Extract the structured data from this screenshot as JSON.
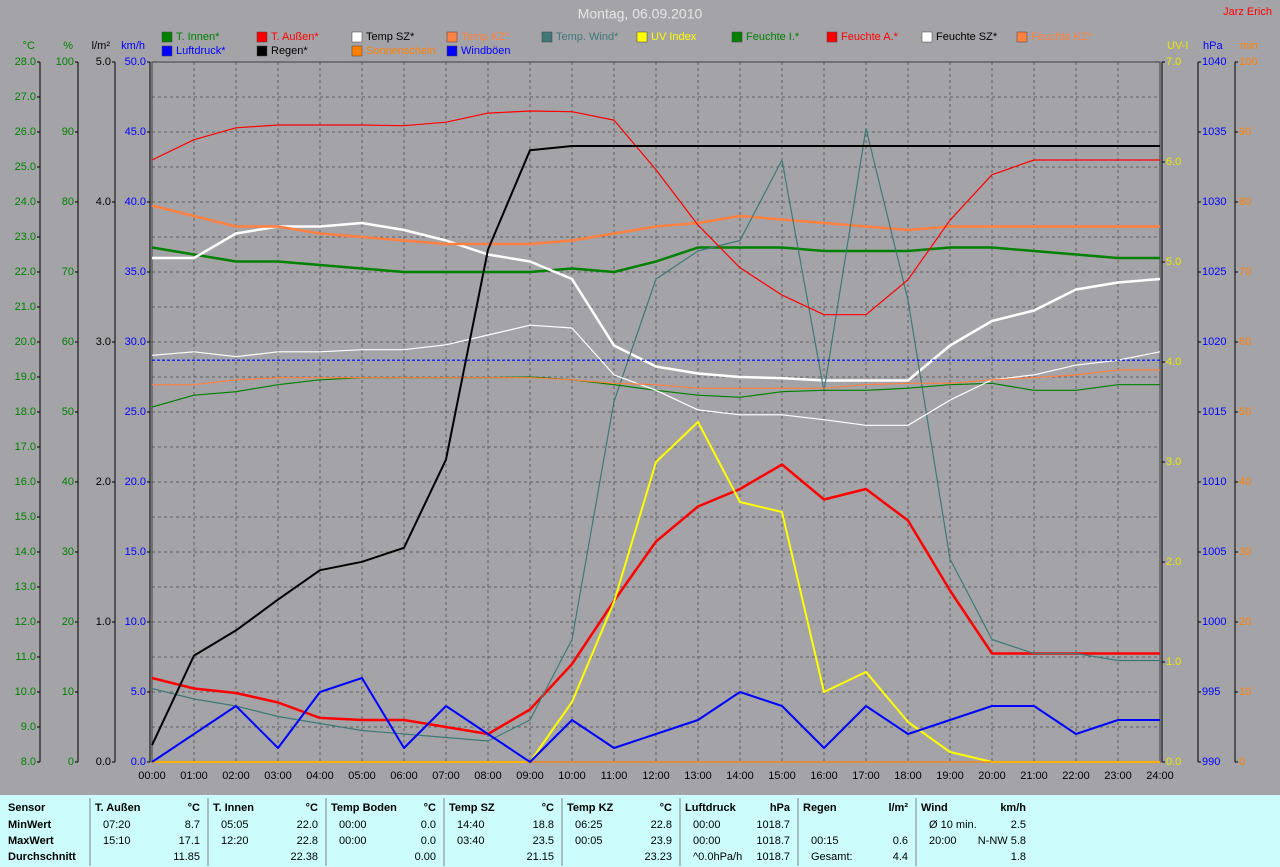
{
  "chart_data": {
    "type": "line",
    "title": "Montag, 06.09.2010",
    "annotation": "Jarz Erich",
    "grid": true,
    "x": [
      0,
      1,
      2,
      3,
      4,
      5,
      6,
      7,
      8,
      9,
      10,
      11,
      12,
      13,
      14,
      15,
      16,
      17,
      18,
      19,
      20,
      21,
      22,
      23,
      24
    ],
    "xlim": [
      0,
      24
    ],
    "xticks": [
      {
        "value": 0,
        "label": "00:00"
      },
      {
        "value": 1,
        "label": "01:00"
      },
      {
        "value": 2,
        "label": "02:00"
      },
      {
        "value": 3,
        "label": "03:00"
      },
      {
        "value": 4,
        "label": "04:00"
      },
      {
        "value": 5,
        "label": "05:00"
      },
      {
        "value": 6,
        "label": "06:00"
      },
      {
        "value": 7,
        "label": "07:00"
      },
      {
        "value": 8,
        "label": "08:00"
      },
      {
        "value": 9,
        "label": "09:00"
      },
      {
        "value": 10,
        "label": "10:00"
      },
      {
        "value": 11,
        "label": "11:00"
      },
      {
        "value": 12,
        "label": "12:00"
      },
      {
        "value": 13,
        "label": "13:00"
      },
      {
        "value": 14,
        "label": "14:00"
      },
      {
        "value": 15,
        "label": "15:00"
      },
      {
        "value": 16,
        "label": "16:00"
      },
      {
        "value": 17,
        "label": "17:00"
      },
      {
        "value": 18,
        "label": "18:00"
      },
      {
        "value": 19,
        "label": "19:00"
      },
      {
        "value": 20,
        "label": "20:00"
      },
      {
        "value": 21,
        "label": "21:00"
      },
      {
        "value": 22,
        "label": "22:00"
      },
      {
        "value": 23,
        "label": "23:00"
      },
      {
        "value": 24,
        "label": "24:00"
      }
    ],
    "axes": [
      {
        "label": "°C",
        "color": "#008000",
        "ylim": [
          8,
          28
        ],
        "yticks": [
          {
            "value": 8,
            "label": "8.0"
          },
          {
            "value": 9,
            "label": "9.0"
          },
          {
            "value": 10,
            "label": "10.0"
          },
          {
            "value": 11,
            "label": "11.0"
          },
          {
            "value": 12,
            "label": "12.0"
          },
          {
            "value": 13,
            "label": "13.0"
          },
          {
            "value": 14,
            "label": "14.0"
          },
          {
            "value": 15,
            "label": "15.0"
          },
          {
            "value": 16,
            "label": "16.0"
          },
          {
            "value": 17,
            "label": "17.0"
          },
          {
            "value": 18,
            "label": "18.0"
          },
          {
            "value": 19,
            "label": "19.0"
          },
          {
            "value": 20,
            "label": "20.0"
          },
          {
            "value": 21,
            "label": "21.0"
          },
          {
            "value": 22,
            "label": "22.0"
          },
          {
            "value": 23,
            "label": "23.0"
          },
          {
            "value": 24,
            "label": "24.0"
          },
          {
            "value": 25,
            "label": "25.0"
          },
          {
            "value": 26,
            "label": "26.0"
          },
          {
            "value": 27,
            "label": "27.0"
          },
          {
            "value": 28,
            "label": "28.0"
          }
        ]
      },
      {
        "label": "%",
        "color": "#008000",
        "ylim": [
          0,
          100
        ],
        "yticks": [
          0,
          10,
          20,
          30,
          40,
          50,
          60,
          70,
          80,
          90,
          100
        ]
      },
      {
        "label": "l/m²",
        "color": "#000000",
        "ylim": [
          0,
          5
        ],
        "yticks": [
          {
            "value": 0,
            "label": "0.0"
          },
          {
            "value": 1,
            "label": "1.0"
          },
          {
            "value": 2,
            "label": "2.0"
          },
          {
            "value": 3,
            "label": "3.0"
          },
          {
            "value": 4,
            "label": "4.0"
          },
          {
            "value": 5,
            "label": "5.0"
          }
        ]
      },
      {
        "label": "km/h",
        "color": "#0000ff",
        "ylim": [
          0,
          50
        ],
        "yticks": [
          {
            "value": 0,
            "label": "0.0"
          },
          {
            "value": 5,
            "label": "5.0"
          },
          {
            "value": 10,
            "label": "10.0"
          },
          {
            "value": 15,
            "label": "15.0"
          },
          {
            "value": 20,
            "label": "20.0"
          },
          {
            "value": 25,
            "label": "25.0"
          },
          {
            "value": 30,
            "label": "30.0"
          },
          {
            "value": 35,
            "label": "35.0"
          },
          {
            "value": 40,
            "label": "40.0"
          },
          {
            "value": 45,
            "label": "45.0"
          },
          {
            "value": 50,
            "label": "50.0"
          }
        ]
      },
      {
        "label": "UV-I",
        "color": "#e8e800",
        "ylim": [
          0,
          7
        ],
        "yticks": [
          {
            "value": 0,
            "label": "0.0"
          },
          {
            "value": 1,
            "label": "1.0"
          },
          {
            "value": 2,
            "label": "2.0"
          },
          {
            "value": 3,
            "label": "3.0"
          },
          {
            "value": 4,
            "label": "4.0"
          },
          {
            "value": 5,
            "label": "5.0"
          },
          {
            "value": 6,
            "label": "6.0"
          },
          {
            "value": 7,
            "label": "7.0"
          }
        ]
      },
      {
        "label": "hPa",
        "color": "#0000ff",
        "ylim": [
          990,
          1040
        ],
        "yticks": [
          990,
          995,
          1000,
          1005,
          1010,
          1015,
          1020,
          1025,
          1030,
          1035,
          1040
        ]
      },
      {
        "label": "min",
        "color": "#ff8000",
        "ylim": [
          0,
          100
        ],
        "yticks": [
          0,
          10,
          20,
          30,
          40,
          50,
          60,
          70,
          80,
          90,
          100
        ]
      }
    ],
    "series": [
      {
        "name": "T. Innen*",
        "color": "#008000",
        "axis": 0,
        "linewidth": 2.5,
        "values": [
          22.7,
          22.5,
          22.3,
          22.3,
          22.2,
          22.1,
          22.0,
          22.0,
          22.0,
          22.0,
          22.1,
          22.0,
          22.3,
          22.7,
          22.7,
          22.7,
          22.6,
          22.6,
          22.6,
          22.7,
          22.7,
          22.6,
          22.5,
          22.4,
          22.4
        ]
      },
      {
        "name": "T. Außen*",
        "color": "#ff0000",
        "axis": 0,
        "linewidth": 2.5,
        "values": [
          10.4,
          10.1,
          9.97,
          9.7,
          9.26,
          9.2,
          9.2,
          9.0,
          8.8,
          9.5,
          10.8,
          12.6,
          14.3,
          15.3,
          15.8,
          16.5,
          15.5,
          15.8,
          14.9,
          12.9,
          11.1,
          11.1,
          11.1,
          11.1,
          11.1
        ]
      },
      {
        "name": "Temp SZ*",
        "color": "#ffffff",
        "axis": 0,
        "linewidth": 2.5,
        "values": [
          22.4,
          22.4,
          23.1,
          23.3,
          23.3,
          23.4,
          23.2,
          22.9,
          22.5,
          22.3,
          21.8,
          19.9,
          19.3,
          19.1,
          19.0,
          18.97,
          18.9,
          18.9,
          18.9,
          19.9,
          20.6,
          20.9,
          21.5,
          21.7,
          21.8
        ]
      },
      {
        "name": "Temp KZ*",
        "color": "#ff8040",
        "axis": 0,
        "linewidth": 2.5,
        "values": [
          23.9,
          23.6,
          23.3,
          23.3,
          23.1,
          23.0,
          22.9,
          22.8,
          22.8,
          22.8,
          22.9,
          23.1,
          23.3,
          23.4,
          23.6,
          23.5,
          23.4,
          23.3,
          23.2,
          23.3,
          23.3,
          23.3,
          23.3,
          23.3,
          23.3
        ]
      },
      {
        "name": "Temp. Wind*",
        "color": "#407878",
        "axis": 0,
        "linewidth": 1.2,
        "values": [
          10.1,
          9.8,
          9.6,
          9.3,
          9.1,
          8.9,
          8.8,
          8.7,
          8.6,
          9.2,
          11.5,
          18.3,
          21.8,
          22.6,
          22.9,
          25.2,
          18.6,
          26.1,
          21.2,
          13.8,
          11.5,
          11.1,
          11.1,
          10.9,
          10.9
        ]
      },
      {
        "name": "UV Index",
        "color": "#ffff00",
        "axis": 4,
        "linewidth": 2,
        "values": [
          0,
          0,
          0,
          0,
          0,
          0,
          0,
          0,
          0,
          0,
          0.6,
          1.6,
          3.0,
          3.4,
          2.6,
          2.5,
          0.7,
          0.9,
          0.4,
          0.1,
          0,
          0,
          0,
          0,
          0
        ]
      },
      {
        "name": "Feuchte I.*",
        "color": "#008000",
        "axis": 1,
        "linewidth": 1.2,
        "values": [
          50.7,
          52.4,
          52.9,
          53.9,
          54.6,
          54.9,
          54.9,
          54.9,
          54.9,
          55,
          54.6,
          53.9,
          53.1,
          52.4,
          52.1,
          52.9,
          53.1,
          53.1,
          53.4,
          53.9,
          54.1,
          53.1,
          53.1,
          53.9,
          53.9
        ]
      },
      {
        "name": "Feuchte A.*",
        "color": "#ff0000",
        "axis": 1,
        "linewidth": 1.2,
        "values": [
          86,
          88.9,
          90.6,
          91,
          91,
          91,
          90.9,
          91.4,
          92.7,
          93,
          92.9,
          91.7,
          84.6,
          76.7,
          70.6,
          66.7,
          63.9,
          63.9,
          68.9,
          77.4,
          83.9,
          86,
          86,
          86,
          86
        ]
      },
      {
        "name": "Feuchte SZ*",
        "color": "#ffffff",
        "axis": 1,
        "linewidth": 1.2,
        "values": [
          58.1,
          58.6,
          57.9,
          58.6,
          58.6,
          58.9,
          58.9,
          59.6,
          61,
          62.4,
          62,
          55.3,
          53.1,
          50.3,
          49.6,
          49.6,
          48.9,
          48.1,
          48.1,
          51.7,
          54.6,
          55.3,
          56.7,
          57.4,
          58.6
        ]
      },
      {
        "name": "Feuchte KZ*",
        "color": "#ff8040",
        "axis": 1,
        "linewidth": 1.2,
        "values": [
          53.9,
          53.9,
          54.6,
          54.9,
          54.9,
          54.9,
          54.9,
          54.9,
          54.9,
          54.9,
          54.6,
          54.1,
          53.9,
          53.4,
          53.4,
          53.4,
          53.4,
          53.9,
          54.1,
          54.1,
          54.6,
          54.9,
          55.3,
          56,
          56
        ]
      },
      {
        "name": "Luftdruck*",
        "color": "#0000ff",
        "axis": 5,
        "linewidth": 1.2,
        "dashed": true,
        "values": [
          1018.7,
          1018.7,
          1018.7,
          1018.7,
          1018.7,
          1018.7,
          1018.7,
          1018.7,
          1018.7,
          1018.7,
          1018.7,
          1018.7,
          1018.7,
          1018.7,
          1018.7,
          1018.7,
          1018.7,
          1018.7,
          1018.7,
          1018.7,
          1018.7,
          1018.7,
          1018.7,
          1018.7,
          1018.7
        ]
      },
      {
        "name": "Regen*",
        "color": "#000000",
        "axis": 2,
        "linewidth": 2,
        "values": [
          0.12,
          0.76,
          0.94,
          1.16,
          1.37,
          1.43,
          1.53,
          2.16,
          3.66,
          4.37,
          4.4,
          4.4,
          4.4,
          4.4,
          4.4,
          4.4,
          4.4,
          4.4,
          4.4,
          4.4,
          4.4,
          4.4,
          4.4,
          4.4,
          4.4
        ]
      },
      {
        "name": "Sonnenschein",
        "color": "#ff8000",
        "axis": 6,
        "linewidth": 1.2,
        "values": [
          0,
          0,
          0,
          0,
          0,
          0,
          0,
          0,
          0,
          0,
          0,
          0,
          0,
          0,
          0,
          0,
          0,
          0,
          0,
          0,
          0,
          0,
          0,
          0,
          0
        ]
      },
      {
        "name": "Windböen",
        "color": "#0000ff",
        "axis": 3,
        "linewidth": 2,
        "values": [
          0,
          2,
          4,
          1,
          5,
          6,
          1,
          4,
          2,
          0,
          3,
          1,
          2,
          3,
          5,
          4,
          1,
          4,
          2,
          3,
          4,
          4,
          2,
          3,
          3
        ]
      }
    ]
  },
  "table": {
    "row_labels": [
      "Sensor",
      "MinWert",
      "MaxWert",
      "Durchschnitt"
    ],
    "groups": [
      {
        "header": "T. Außen",
        "unit": "°C",
        "rows": [
          [
            "07:20",
            "8.7"
          ],
          [
            "15:10",
            "17.1"
          ],
          [
            null,
            "11.85"
          ]
        ]
      },
      {
        "header": "T. Innen",
        "unit": "°C",
        "rows": [
          [
            "05:05",
            "22.0"
          ],
          [
            "12:20",
            "22.8"
          ],
          [
            null,
            "22.38"
          ]
        ]
      },
      {
        "header": "Temp Boden",
        "unit": "°C",
        "rows": [
          [
            "00:00",
            "0.0"
          ],
          [
            "00:00",
            "0.0"
          ],
          [
            null,
            "0.00"
          ]
        ]
      },
      {
        "header": "Temp SZ",
        "unit": "°C",
        "rows": [
          [
            "14:40",
            "18.8"
          ],
          [
            "03:40",
            "23.5"
          ],
          [
            null,
            "21.15"
          ]
        ]
      },
      {
        "header": "Temp KZ",
        "unit": "°C",
        "rows": [
          [
            "06:25",
            "22.8"
          ],
          [
            "00:05",
            "23.9"
          ],
          [
            null,
            "23.23"
          ]
        ]
      },
      {
        "header": "Luftdruck",
        "unit": "hPa",
        "rows": [
          [
            "00:00",
            "1018.7"
          ],
          [
            "00:00",
            "1018.7"
          ],
          [
            "^0.0hPa/h",
            "1018.7"
          ]
        ]
      },
      {
        "header": "Regen",
        "unit": "l/m²",
        "rows": [
          [
            null,
            null
          ],
          [
            "00:15",
            "0.6"
          ],
          [
            "Gesamt:",
            "4.4"
          ]
        ]
      },
      {
        "header": "Wind",
        "unit": "km/h",
        "rows": [
          [
            "Ø 10 min.",
            "2.5"
          ],
          [
            "20:00",
            "N-NW 5.8"
          ],
          [
            null,
            "1.8"
          ]
        ]
      }
    ]
  }
}
